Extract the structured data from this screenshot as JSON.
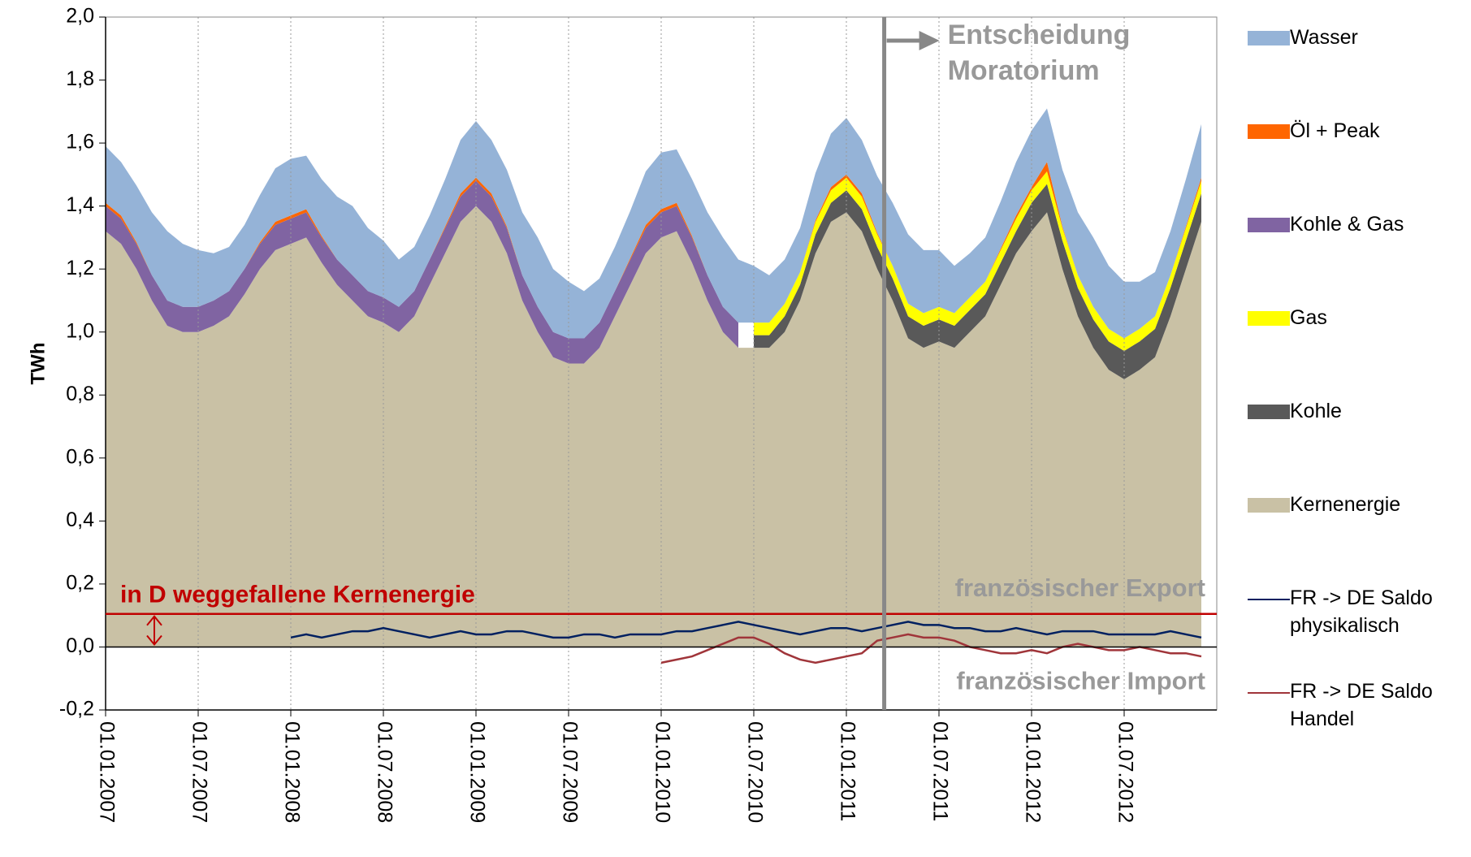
{
  "chart_data": {
    "type": "stacked-area",
    "ylabel": "TWh",
    "x": [
      "01.01.2007",
      "01.02.2007",
      "01.03.2007",
      "01.04.2007",
      "01.05.2007",
      "01.06.2007",
      "01.07.2007",
      "01.08.2007",
      "01.09.2007",
      "01.10.2007",
      "01.11.2007",
      "01.12.2007",
      "01.01.2008",
      "01.02.2008",
      "01.03.2008",
      "01.04.2008",
      "01.05.2008",
      "01.06.2008",
      "01.07.2008",
      "01.08.2008",
      "01.09.2008",
      "01.10.2008",
      "01.11.2008",
      "01.12.2008",
      "01.01.2009",
      "01.02.2009",
      "01.03.2009",
      "01.04.2009",
      "01.05.2009",
      "01.06.2009",
      "01.07.2009",
      "01.08.2009",
      "01.09.2009",
      "01.10.2009",
      "01.11.2009",
      "01.12.2009",
      "01.01.2010",
      "01.02.2010",
      "01.03.2010",
      "01.04.2010",
      "01.05.2010",
      "01.06.2010",
      "01.07.2010",
      "01.08.2010",
      "01.09.2010",
      "01.10.2010",
      "01.11.2010",
      "01.12.2010",
      "01.01.2011",
      "01.02.2011",
      "01.03.2011",
      "01.04.2011",
      "01.05.2011",
      "01.06.2011",
      "01.07.2011",
      "01.08.2011",
      "01.09.2011",
      "01.10.2011",
      "01.11.2011",
      "01.12.2011",
      "01.01.2012",
      "01.02.2012",
      "01.03.2012",
      "01.04.2012",
      "01.05.2012",
      "01.06.2012",
      "01.07.2012",
      "01.08.2012",
      "01.09.2012",
      "01.10.2012",
      "01.11.2012",
      "01.12.2012"
    ],
    "xlim": [
      "01.01.2007",
      "01.01.2013"
    ],
    "xticks": [
      "01.01.2007",
      "01.07.2007",
      "01.01.2008",
      "01.07.2008",
      "01.01.2009",
      "01.07.2009",
      "01.01.2010",
      "01.07.2010",
      "01.01.2011",
      "01.07.2011",
      "01.01.2012",
      "01.07.2012"
    ],
    "ylim": [
      -0.2,
      2.0
    ],
    "yticks": [
      {
        "value": -0.2,
        "label": "-0,2"
      },
      {
        "value": 0,
        "label": "0,0"
      },
      {
        "value": 0.2,
        "label": "0,2"
      },
      {
        "value": 0.4,
        "label": "0,4"
      },
      {
        "value": 0.6,
        "label": "0,6"
      },
      {
        "value": 0.8,
        "label": "0,8"
      },
      {
        "value": 1.0,
        "label": "1,0"
      },
      {
        "value": 1.2,
        "label": "1,2"
      },
      {
        "value": 1.4,
        "label": "1,4"
      },
      {
        "value": 1.6,
        "label": "1,6"
      },
      {
        "value": 1.8,
        "label": "1,8"
      },
      {
        "value": 2.0,
        "label": "2,0"
      }
    ],
    "grid": true,
    "series": [
      {
        "name": "Kernenergie",
        "color": "#c9c1a5",
        "values": [
          1.32,
          1.28,
          1.2,
          1.1,
          1.02,
          1.0,
          1.0,
          1.02,
          1.05,
          1.12,
          1.2,
          1.26,
          1.28,
          1.3,
          1.22,
          1.15,
          1.1,
          1.05,
          1.03,
          1.0,
          1.05,
          1.15,
          1.25,
          1.35,
          1.4,
          1.35,
          1.25,
          1.1,
          1.0,
          0.92,
          0.9,
          0.9,
          0.95,
          1.05,
          1.15,
          1.25,
          1.3,
          1.32,
          1.22,
          1.1,
          1.0,
          0.95,
          0.95,
          0.95,
          1.0,
          1.1,
          1.25,
          1.35,
          1.38,
          1.32,
          1.2,
          1.1,
          0.98,
          0.95,
          0.97,
          0.95,
          1.0,
          1.05,
          1.15,
          1.25,
          1.32,
          1.38,
          1.2,
          1.05,
          0.95,
          0.88,
          0.85,
          0.88,
          0.92,
          1.05,
          1.2,
          1.35
        ]
      },
      {
        "name": "Kohle",
        "color": "#595959",
        "values": [
          null,
          null,
          null,
          null,
          null,
          null,
          null,
          null,
          null,
          null,
          null,
          null,
          null,
          null,
          null,
          null,
          null,
          null,
          null,
          null,
          null,
          null,
          null,
          null,
          null,
          null,
          null,
          null,
          null,
          null,
          null,
          null,
          null,
          null,
          null,
          null,
          null,
          null,
          null,
          null,
          null,
          null,
          0.04,
          0.04,
          0.05,
          0.05,
          0.06,
          0.06,
          0.07,
          0.07,
          0.07,
          0.07,
          0.07,
          0.07,
          0.07,
          0.07,
          0.07,
          0.07,
          0.07,
          0.07,
          0.09,
          0.09,
          0.09,
          0.09,
          0.09,
          0.09,
          0.09,
          0.09,
          0.09,
          0.09,
          0.09,
          0.09
        ]
      },
      {
        "name": "Gas",
        "color": "#ffff00",
        "values": [
          null,
          null,
          null,
          null,
          null,
          null,
          null,
          null,
          null,
          null,
          null,
          null,
          null,
          null,
          null,
          null,
          null,
          null,
          null,
          null,
          null,
          null,
          null,
          null,
          null,
          null,
          null,
          null,
          null,
          null,
          null,
          null,
          null,
          null,
          null,
          null,
          null,
          null,
          null,
          null,
          null,
          null,
          0.04,
          0.04,
          0.04,
          0.04,
          0.04,
          0.04,
          0.04,
          0.04,
          0.04,
          0.04,
          0.04,
          0.04,
          0.04,
          0.04,
          0.04,
          0.04,
          0.04,
          0.04,
          0.04,
          0.04,
          0.04,
          0.04,
          0.04,
          0.04,
          0.04,
          0.04,
          0.04,
          0.04,
          0.04,
          0.04
        ]
      },
      {
        "name": "Kohle & Gas",
        "color": "#8064a2",
        "values": [
          0.08,
          0.08,
          0.08,
          0.08,
          0.08,
          0.08,
          0.08,
          0.08,
          0.08,
          0.08,
          0.08,
          0.08,
          0.08,
          0.08,
          0.08,
          0.08,
          0.08,
          0.08,
          0.08,
          0.08,
          0.08,
          0.08,
          0.08,
          0.08,
          0.08,
          0.08,
          0.08,
          0.08,
          0.08,
          0.08,
          0.08,
          0.08,
          0.08,
          0.08,
          0.08,
          0.08,
          0.08,
          0.08,
          0.08,
          0.08,
          0.08,
          0.08,
          null,
          null,
          null,
          null,
          null,
          null,
          null,
          null,
          null,
          null,
          null,
          null,
          null,
          null,
          null,
          null,
          null,
          null,
          null,
          null,
          null,
          null,
          null,
          null,
          null,
          null,
          null,
          null,
          null,
          null
        ]
      },
      {
        "name": "Öl + Peak",
        "color": "#ff6600",
        "values": [
          0.01,
          0.01,
          0.005,
          0,
          0,
          0,
          0,
          0,
          0,
          0,
          0.005,
          0.01,
          0.01,
          0.01,
          0.005,
          0,
          0,
          0,
          0,
          0,
          0,
          0,
          0.005,
          0.01,
          0.01,
          0.01,
          0.005,
          0,
          0,
          0,
          0,
          0,
          0,
          0,
          0.005,
          0.01,
          0.01,
          0.01,
          0.005,
          0,
          0,
          0,
          0,
          0,
          0,
          0,
          0.005,
          0.01,
          0.01,
          0.01,
          0.005,
          0,
          0,
          0,
          0,
          0,
          0,
          0,
          0.005,
          0.01,
          0.01,
          0.03,
          0.005,
          0,
          0,
          0,
          0,
          0,
          0,
          0,
          0.005,
          0.01
        ]
      },
      {
        "name": "Wasser",
        "color": "#95b3d7",
        "values": [
          0.18,
          0.17,
          0.18,
          0.2,
          0.22,
          0.2,
          0.18,
          0.15,
          0.14,
          0.14,
          0.15,
          0.17,
          0.18,
          0.17,
          0.18,
          0.2,
          0.22,
          0.2,
          0.18,
          0.15,
          0.14,
          0.14,
          0.15,
          0.17,
          0.18,
          0.17,
          0.18,
          0.2,
          0.22,
          0.2,
          0.18,
          0.15,
          0.14,
          0.14,
          0.15,
          0.17,
          0.18,
          0.17,
          0.18,
          0.2,
          0.22,
          0.2,
          0.18,
          0.15,
          0.14,
          0.14,
          0.15,
          0.17,
          0.18,
          0.17,
          0.18,
          0.2,
          0.22,
          0.2,
          0.18,
          0.15,
          0.14,
          0.14,
          0.15,
          0.17,
          0.18,
          0.17,
          0.18,
          0.2,
          0.22,
          0.2,
          0.18,
          0.15,
          0.14,
          0.14,
          0.15,
          0.17
        ]
      },
      {
        "name": "FR -> DE Saldo physikalisch",
        "color": "#002060",
        "type": "line",
        "values": [
          null,
          null,
          null,
          null,
          null,
          null,
          null,
          null,
          null,
          null,
          null,
          null,
          0.03,
          0.04,
          0.03,
          0.04,
          0.05,
          0.05,
          0.06,
          0.05,
          0.04,
          0.03,
          0.04,
          0.05,
          0.04,
          0.04,
          0.05,
          0.05,
          0.04,
          0.03,
          0.03,
          0.04,
          0.04,
          0.03,
          0.04,
          0.04,
          0.04,
          0.05,
          0.05,
          0.06,
          0.07,
          0.08,
          0.07,
          0.06,
          0.05,
          0.04,
          0.05,
          0.06,
          0.06,
          0.05,
          0.06,
          0.07,
          0.08,
          0.07,
          0.07,
          0.06,
          0.06,
          0.05,
          0.05,
          0.06,
          0.05,
          0.04,
          0.05,
          0.05,
          0.05,
          0.04,
          0.04,
          0.04,
          0.04,
          0.05,
          0.04,
          0.03
        ]
      },
      {
        "name": "FR -> DE Saldo Handel",
        "color": "#a0353a",
        "type": "line",
        "values": [
          null,
          null,
          null,
          null,
          null,
          null,
          null,
          null,
          null,
          null,
          null,
          null,
          null,
          null,
          null,
          null,
          null,
          null,
          null,
          null,
          null,
          null,
          null,
          null,
          null,
          null,
          null,
          null,
          null,
          null,
          null,
          null,
          null,
          null,
          null,
          null,
          -0.05,
          -0.04,
          -0.03,
          -0.01,
          0.01,
          0.03,
          0.03,
          0.01,
          -0.02,
          -0.04,
          -0.05,
          -0.04,
          -0.03,
          -0.02,
          0.02,
          0.03,
          0.04,
          0.03,
          0.03,
          0.02,
          0.0,
          -0.01,
          -0.02,
          -0.02,
          -0.01,
          -0.02,
          0.0,
          0.01,
          0.0,
          -0.01,
          -0.01,
          0.0,
          -0.01,
          -0.02,
          -0.02,
          -0.03
        ]
      }
    ],
    "event": {
      "x": "15.03.2011",
      "label": [
        "Entscheidung",
        "Moratorium"
      ]
    },
    "reference_line": {
      "value": 0.105,
      "label": "in D weggefallene Kernenergie",
      "color": "#c00000"
    },
    "export_label": "französischer Export",
    "import_label": "französischer Import"
  }
}
